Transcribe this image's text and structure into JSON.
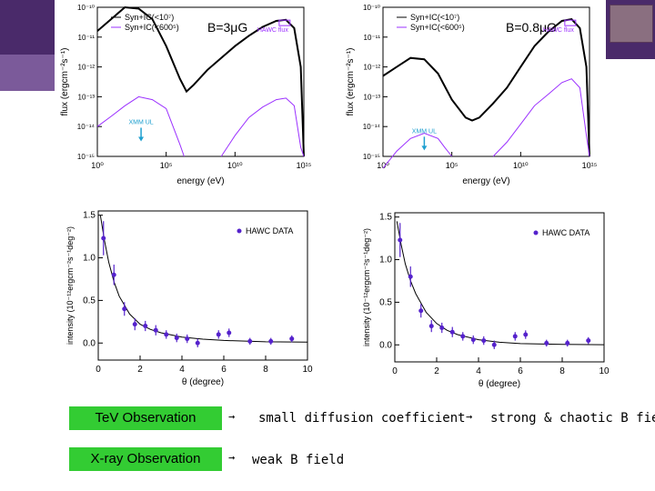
{
  "colors": {
    "curve": "#000000",
    "ic": "#9b30ff",
    "hawc": "#5522cc",
    "xray": "#1fa0d0",
    "boxGreen": "#33cc33"
  },
  "texts": {
    "tev_obs": "TeV Observation",
    "xray_obs": "X-ray Observation",
    "arrow": "→",
    "tev_text1": "small diffusion coefficient",
    "tev_text2": "strong & chaotic B fie",
    "xray_text": "weak B field"
  },
  "chart_data": [
    {
      "type": "line",
      "title": "B=3μG",
      "xlabel": "energy (eV)",
      "ylabel": "flux (ergcm⁻²s⁻¹)",
      "xscale": "log",
      "yscale": "log",
      "xlim": [
        1,
        1000000000000000.0
      ],
      "ylim": [
        1e-15,
        1e-10
      ],
      "xticks": [
        "10⁰",
        "10⁵",
        "10¹⁰",
        "10¹⁵"
      ],
      "yticks": [
        "10⁻¹⁵",
        "10⁻¹⁴",
        "10⁻¹³",
        "10⁻¹²",
        "10⁻¹¹",
        "10⁻¹⁰"
      ],
      "legend": [
        "Syn+IC(<10⁷)",
        "Syn+IC(<600⁵)"
      ],
      "legend_position": "top-left",
      "annotations": [
        "HAWC flux",
        "XMM UL"
      ],
      "series": [
        {
          "name": "Syn+IC(<10⁷)",
          "color": "#000000",
          "points": [
            [
              1,
              1.6e-11
            ],
            [
              10,
              4e-11
            ],
            [
              100,
              1e-10
            ],
            [
              1000,
              9e-11
            ],
            [
              10000,
              4e-11
            ],
            [
              100000,
              5e-12
            ],
            [
              1000000,
              4e-13
            ],
            [
              3000000,
              1.5e-13
            ],
            [
              10000000,
              2.5e-13
            ],
            [
              100000000,
              8e-13
            ],
            [
              1000000000.0,
              2e-12
            ],
            [
              10000000000.0,
              5e-12
            ],
            [
              100000000000.0,
              1.1e-11
            ],
            [
              1000000000000.0,
              2.2e-11
            ],
            [
              10000000000000.0,
              3.5e-11
            ],
            [
              50000000000000.0,
              3.8e-11
            ],
            [
              200000000000000.0,
              2e-11
            ],
            [
              600000000000000.0,
              1e-12
            ],
            [
              1000000000000000.0,
              1e-15
            ]
          ]
        },
        {
          "name": "Syn+IC(<600⁵)",
          "color": "#9b30ff",
          "points": [
            [
              1,
              1e-14
            ],
            [
              10,
              2.2e-14
            ],
            [
              100,
              5e-14
            ],
            [
              1000,
              1e-13
            ],
            [
              10000,
              8e-14
            ],
            [
              100000,
              4e-14
            ],
            [
              1000000,
              2.5e-15
            ],
            [
              2000000,
              1e-15
            ]
          ]
        },
        {
          "name": "IC segment",
          "color": "#9b30ff",
          "points": [
            [
              1000000000.0,
              1e-15
            ],
            [
              10000000000.0,
              5e-15
            ],
            [
              100000000000.0,
              2e-14
            ],
            [
              1000000000000.0,
              4.5e-14
            ],
            [
              10000000000000.0,
              8e-14
            ],
            [
              50000000000000.0,
              9e-14
            ],
            [
              200000000000000.0,
              5e-14
            ],
            [
              600000000000000.0,
              2e-15
            ],
            [
              1000000000000000.0,
              1e-15
            ]
          ]
        }
      ],
      "hawc_flux": {
        "x": 40000000000000.0,
        "y": 3e-11
      },
      "xmm_ul": {
        "x": 1500,
        "y": 6e-15
      }
    },
    {
      "type": "line",
      "title": "B=0.8μG",
      "xlabel": "energy (eV)",
      "ylabel": "flux (ergcm⁻²s⁻¹)",
      "xscale": "log",
      "yscale": "log",
      "xlim": [
        1,
        1000000000000000.0
      ],
      "ylim": [
        1e-15,
        1e-10
      ],
      "xticks": [
        "10⁰",
        "10⁵",
        "10¹⁰",
        "10¹⁵"
      ],
      "yticks": [
        "10⁻¹⁵",
        "10⁻¹⁴",
        "10⁻¹³",
        "10⁻¹²",
        "10⁻¹¹",
        "10⁻¹⁰"
      ],
      "legend": [
        "Syn+IC(<10⁷)",
        "Syn+IC(<600⁵)"
      ],
      "legend_position": "top-left",
      "annotations": [
        "HAWC flux",
        "XMM UL"
      ],
      "series": [
        {
          "name": "Syn+IC(<10⁷)",
          "color": "#000000",
          "points": [
            [
              1,
              5e-13
            ],
            [
              10,
              1e-12
            ],
            [
              100,
              2e-12
            ],
            [
              1000,
              1.8e-12
            ],
            [
              10000,
              6e-13
            ],
            [
              100000,
              8e-14
            ],
            [
              1000000,
              2e-14
            ],
            [
              3000000,
              1.6e-14
            ],
            [
              10000000,
              2e-14
            ],
            [
              100000000,
              6e-14
            ],
            [
              1000000000.0,
              2e-13
            ],
            [
              10000000000.0,
              1e-12
            ],
            [
              100000000000.0,
              5e-12
            ],
            [
              1000000000000.0,
              1.5e-11
            ],
            [
              10000000000000.0,
              3.5e-11
            ],
            [
              50000000000000.0,
              4e-11
            ],
            [
              200000000000000.0,
              2e-11
            ],
            [
              600000000000000.0,
              1e-12
            ],
            [
              1000000000000000.0,
              1e-15
            ]
          ]
        },
        {
          "name": "Syn+IC(<600⁵)",
          "color": "#9b30ff",
          "points": [
            [
              1,
              4e-16
            ],
            [
              10,
              1.5e-15
            ],
            [
              100,
              4e-15
            ],
            [
              1000,
              6e-15
            ],
            [
              10000,
              4e-15
            ],
            [
              30000,
              2e-15
            ],
            [
              100000,
              1e-15
            ]
          ]
        },
        {
          "name": "IC segment",
          "color": "#9b30ff",
          "points": [
            [
              100000000.0,
              1e-15
            ],
            [
              1000000000.0,
              3e-15
            ],
            [
              10000000000.0,
              1.2e-14
            ],
            [
              100000000000.0,
              5e-14
            ],
            [
              1000000000000.0,
              1.2e-13
            ],
            [
              10000000000000.0,
              3e-13
            ],
            [
              50000000000000.0,
              4e-13
            ],
            [
              200000000000000.0,
              2e-13
            ],
            [
              600000000000000.0,
              5e-15
            ],
            [
              1000000000000000.0,
              1e-15
            ]
          ]
        }
      ],
      "hawc_flux": {
        "x": 40000000000000.0,
        "y": 3e-11
      },
      "xmm_ul": {
        "x": 1000,
        "y": 3e-15
      }
    },
    {
      "type": "scatter",
      "xlabel": "θ (degree)",
      "ylabel": "intensity (10⁻¹²ergcm⁻²s⁻¹deg⁻²)",
      "xlim": [
        0,
        10
      ],
      "ylim": [
        -0.2,
        1.55
      ],
      "xticks": [
        0,
        2,
        4,
        6,
        8,
        10
      ],
      "yticks": [
        0.0,
        0.5,
        1.0,
        1.5
      ],
      "legend": [
        "HAWC DATA"
      ],
      "legend_position": "top-right",
      "points": [
        {
          "x": 0.25,
          "y": 1.23,
          "err": 0.2
        },
        {
          "x": 0.75,
          "y": 0.8,
          "err": 0.12
        },
        {
          "x": 1.25,
          "y": 0.4,
          "err": 0.08
        },
        {
          "x": 1.75,
          "y": 0.22,
          "err": 0.07
        },
        {
          "x": 2.25,
          "y": 0.2,
          "err": 0.06
        },
        {
          "x": 2.75,
          "y": 0.15,
          "err": 0.06
        },
        {
          "x": 3.25,
          "y": 0.1,
          "err": 0.05
        },
        {
          "x": 3.75,
          "y": 0.06,
          "err": 0.05
        },
        {
          "x": 4.25,
          "y": 0.05,
          "err": 0.05
        },
        {
          "x": 4.75,
          "y": 0.0,
          "err": 0.05
        },
        {
          "x": 5.75,
          "y": 0.1,
          "err": 0.05
        },
        {
          "x": 6.25,
          "y": 0.12,
          "err": 0.05
        },
        {
          "x": 7.25,
          "y": 0.02,
          "err": 0.04
        },
        {
          "x": 8.25,
          "y": 0.02,
          "err": 0.04
        },
        {
          "x": 9.25,
          "y": 0.05,
          "err": 0.04
        }
      ],
      "curve": [
        [
          0.1,
          1.5
        ],
        [
          0.3,
          1.2
        ],
        [
          0.5,
          0.95
        ],
        [
          0.75,
          0.72
        ],
        [
          1.0,
          0.55
        ],
        [
          1.5,
          0.34
        ],
        [
          2.0,
          0.22
        ],
        [
          2.5,
          0.16
        ],
        [
          3.0,
          0.12
        ],
        [
          4.0,
          0.07
        ],
        [
          5.0,
          0.045
        ],
        [
          6.0,
          0.03
        ],
        [
          8.0,
          0.015
        ],
        [
          10.0,
          0.01
        ]
      ]
    },
    {
      "type": "scatter",
      "xlabel": "θ (degree)",
      "ylabel": "intensity (10⁻¹²ergcm⁻²s⁻¹deg⁻²)",
      "xlim": [
        0,
        10
      ],
      "ylim": [
        -0.2,
        1.55
      ],
      "xticks": [
        0,
        2,
        4,
        6,
        8,
        10
      ],
      "yticks": [
        0.0,
        0.5,
        1.0,
        1.5
      ],
      "legend": [
        "HAWC DATA"
      ],
      "legend_position": "top-right",
      "points": [
        {
          "x": 0.25,
          "y": 1.23,
          "err": 0.2
        },
        {
          "x": 0.75,
          "y": 0.8,
          "err": 0.12
        },
        {
          "x": 1.25,
          "y": 0.4,
          "err": 0.08
        },
        {
          "x": 1.75,
          "y": 0.22,
          "err": 0.07
        },
        {
          "x": 2.25,
          "y": 0.2,
          "err": 0.06
        },
        {
          "x": 2.75,
          "y": 0.15,
          "err": 0.06
        },
        {
          "x": 3.25,
          "y": 0.1,
          "err": 0.05
        },
        {
          "x": 3.75,
          "y": 0.06,
          "err": 0.05
        },
        {
          "x": 4.25,
          "y": 0.05,
          "err": 0.05
        },
        {
          "x": 4.75,
          "y": 0.0,
          "err": 0.05
        },
        {
          "x": 5.75,
          "y": 0.1,
          "err": 0.05
        },
        {
          "x": 6.25,
          "y": 0.12,
          "err": 0.05
        },
        {
          "x": 7.25,
          "y": 0.02,
          "err": 0.04
        },
        {
          "x": 8.25,
          "y": 0.02,
          "err": 0.04
        },
        {
          "x": 9.25,
          "y": 0.05,
          "err": 0.04
        }
      ],
      "curve": [
        [
          0.1,
          1.45
        ],
        [
          0.3,
          1.18
        ],
        [
          0.5,
          0.95
        ],
        [
          0.75,
          0.75
        ],
        [
          1.0,
          0.6
        ],
        [
          1.5,
          0.38
        ],
        [
          2.0,
          0.25
        ],
        [
          2.5,
          0.17
        ],
        [
          3.0,
          0.12
        ],
        [
          4.0,
          0.06
        ],
        [
          5.0,
          0.03
        ],
        [
          6.0,
          0.015
        ],
        [
          8.0,
          0.005
        ],
        [
          10.0,
          0.002
        ]
      ]
    }
  ]
}
